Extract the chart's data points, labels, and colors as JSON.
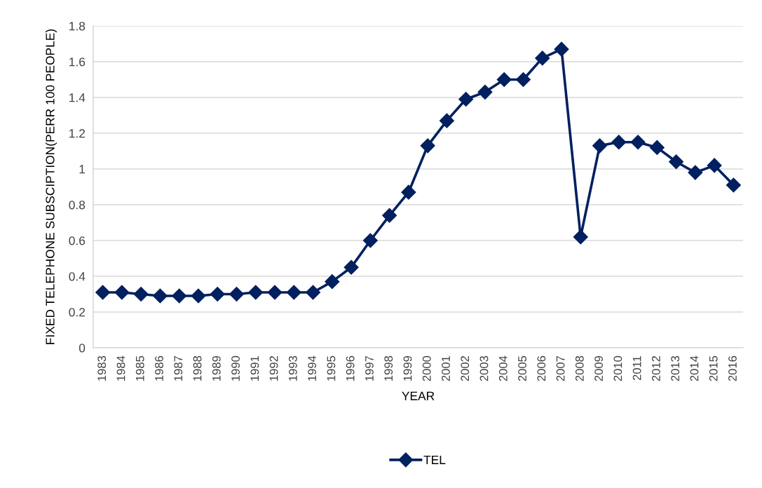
{
  "chart_data": {
    "type": "line",
    "xlabel": "YEAR",
    "ylabel": "FIXED TELEPHONE SUBSCIPTION(PERR 100 PEOPLE)",
    "categories": [
      "1983",
      "1984",
      "1985",
      "1986",
      "1987",
      "1988",
      "1989",
      "1990",
      "1991",
      "1992",
      "1993",
      "1994",
      "1995",
      "1996",
      "1997",
      "1998",
      "1999",
      "2000",
      "2001",
      "2002",
      "2003",
      "2004",
      "2005",
      "2006",
      "2007",
      "2008",
      "2009",
      "2010",
      "2011",
      "2012",
      "2013",
      "2014",
      "2015",
      "2016"
    ],
    "series": [
      {
        "name": "TEL",
        "color": "#002060",
        "values": [
          0.31,
          0.31,
          0.3,
          0.29,
          0.29,
          0.29,
          0.3,
          0.3,
          0.31,
          0.31,
          0.31,
          0.31,
          0.37,
          0.45,
          0.6,
          0.74,
          0.87,
          1.13,
          1.27,
          1.39,
          1.43,
          1.5,
          1.5,
          1.62,
          1.67,
          0.62,
          1.13,
          1.15,
          1.15,
          1.12,
          1.04,
          0.98,
          1.02,
          0.91
        ]
      }
    ],
    "ylim": [
      0,
      1.8
    ],
    "yticks": [
      0,
      0.2,
      0.4,
      0.6,
      0.8,
      1,
      1.2,
      1.4,
      1.6,
      1.8
    ],
    "grid": "y",
    "legend": "bottom",
    "marker": "diamond",
    "line_style": "solid"
  }
}
